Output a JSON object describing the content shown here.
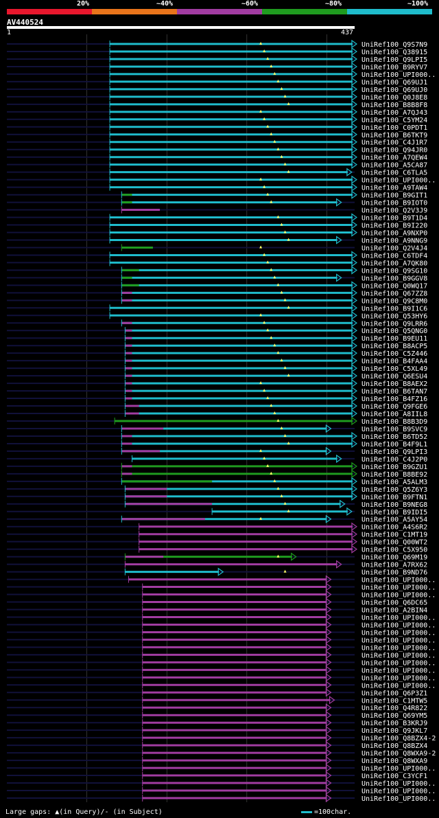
{
  "query": {
    "id": "AV440524",
    "start": "1",
    "end": "437"
  },
  "scale_labels": [
    "20%",
    "~40%",
    "~60%",
    "~80%",
    "~100%"
  ],
  "colors": {
    "red": "#e8172d",
    "orange": "#e8741b",
    "magenta": "#a13ca1",
    "green": "#1f9b1f",
    "cyan": "#1fbccc",
    "track": "#11113a",
    "grid": "#555555"
  },
  "legend": {
    "gaps_text": "Large gaps: ▲(in Query)/- (in Subject)",
    "scale_text": "=100char."
  },
  "hits": [
    {
      "label": "UniRef100_Q9S7N9",
      "color": "cyan",
      "start": 0.296,
      "end": 0.994,
      "arrow": "cyan"
    },
    {
      "label": "UniRef100_Q38915",
      "color": "cyan",
      "start": 0.296,
      "end": 0.994,
      "arrow": "cyan"
    },
    {
      "label": "UniRef100_Q9LPI5",
      "color": "cyan",
      "start": 0.296,
      "end": 0.994,
      "arrow": "cyan"
    },
    {
      "label": "UniRef100_B9RYV7",
      "color": "cyan",
      "start": 0.296,
      "end": 0.994,
      "arrow": "cyan"
    },
    {
      "label": "UniRef100_UPI000..",
      "color": "cyan",
      "start": 0.296,
      "end": 0.994,
      "arrow": "cyan"
    },
    {
      "label": "UniRef100_Q69UJ1",
      "color": "cyan",
      "start": 0.296,
      "end": 0.994,
      "arrow": "cyan"
    },
    {
      "label": "UniRef100_Q69UJ0",
      "color": "cyan",
      "start": 0.296,
      "end": 0.994,
      "arrow": "cyan"
    },
    {
      "label": "UniRef100_Q0J8E8",
      "color": "cyan",
      "start": 0.296,
      "end": 0.994,
      "arrow": "cyan"
    },
    {
      "label": "UniRef100_B8B8F8",
      "color": "cyan",
      "start": 0.296,
      "end": 0.994,
      "arrow": "cyan"
    },
    {
      "label": "UniRef100_A7QJ43",
      "color": "cyan",
      "start": 0.296,
      "end": 0.994,
      "arrow": "cyan"
    },
    {
      "label": "UniRef100_C5YM24",
      "color": "cyan",
      "start": 0.296,
      "end": 0.994,
      "arrow": "cyan"
    },
    {
      "label": "UniRef100_C0PDT1",
      "color": "cyan",
      "start": 0.296,
      "end": 0.994,
      "arrow": "cyan"
    },
    {
      "label": "UniRef100_B6TKT9",
      "color": "cyan",
      "start": 0.296,
      "end": 0.994,
      "arrow": "cyan"
    },
    {
      "label": "UniRef100_C4J1R7",
      "color": "cyan",
      "start": 0.296,
      "end": 0.994,
      "arrow": "cyan"
    },
    {
      "label": "UniRef100_Q94JR0",
      "color": "cyan",
      "start": 0.296,
      "end": 0.994,
      "arrow": "cyan"
    },
    {
      "label": "UniRef100_A7QEW4",
      "color": "cyan",
      "start": 0.296,
      "end": 0.994,
      "arrow": "cyan"
    },
    {
      "label": "UniRef100_A5CA87",
      "color": "cyan",
      "start": 0.296,
      "end": 0.994,
      "arrow": "cyan"
    },
    {
      "label": "UniRef100_C6TLA5",
      "color": "cyan",
      "start": 0.296,
      "end": 0.98,
      "arrow": "cyan"
    },
    {
      "label": "UniRef100_UPI000..",
      "color": "cyan",
      "start": 0.296,
      "end": 0.994,
      "arrow": "cyan"
    },
    {
      "label": "UniRef100_A9TAW4",
      "color": "cyan",
      "start": 0.296,
      "end": 0.994,
      "arrow": "cyan"
    },
    {
      "label": "UniRef100_B9GIT1",
      "color": "cyan",
      "start": 0.33,
      "end": 0.994,
      "arrow": "cyan",
      "seg": [
        0.33,
        0.36,
        "green"
      ]
    },
    {
      "label": "UniRef100_B9IOT0",
      "color": "cyan",
      "start": 0.33,
      "end": 0.95,
      "arrow": "cyan",
      "seg": [
        0.33,
        0.36,
        "green"
      ]
    },
    {
      "label": "UniRef100_Q2V3J9",
      "color": "magenta",
      "start": 0.33,
      "end": 0.44,
      "arrow": ""
    },
    {
      "label": "UniRef100_B9T1D4",
      "color": "cyan",
      "start": 0.296,
      "end": 0.994,
      "arrow": "cyan"
    },
    {
      "label": "UniRef100_B9I220",
      "color": "cyan",
      "start": 0.296,
      "end": 0.994,
      "arrow": "cyan"
    },
    {
      "label": "UniRef100_A9NXP0",
      "color": "cyan",
      "start": 0.296,
      "end": 0.994,
      "arrow": "cyan"
    },
    {
      "label": "UniRef100_A9NNG9",
      "color": "cyan",
      "start": 0.296,
      "end": 0.95,
      "arrow": "cyan"
    },
    {
      "label": "UniRef100_Q2V4J4",
      "color": "green",
      "start": 0.33,
      "end": 0.42,
      "arrow": ""
    },
    {
      "label": "UniRef100_C6TDF4",
      "color": "cyan",
      "start": 0.296,
      "end": 0.994,
      "arrow": "cyan"
    },
    {
      "label": "UniRef100_A7QK80",
      "color": "cyan",
      "start": 0.296,
      "end": 0.994,
      "arrow": "cyan"
    },
    {
      "label": "UniRef100_Q9SG10",
      "color": "cyan",
      "start": 0.33,
      "end": 0.994,
      "arrow": "cyan",
      "seg": [
        0.33,
        0.38,
        "green"
      ]
    },
    {
      "label": "UniRef100_B9GGV8",
      "color": "cyan",
      "start": 0.33,
      "end": 0.95,
      "arrow": "cyan",
      "seg": [
        0.33,
        0.36,
        "green"
      ]
    },
    {
      "label": "UniRef100_Q0WQ17",
      "color": "cyan",
      "start": 0.33,
      "end": 0.994,
      "arrow": "cyan",
      "seg": [
        0.33,
        0.38,
        "green"
      ]
    },
    {
      "label": "UniRef100_Q67ZZ8",
      "color": "cyan",
      "start": 0.33,
      "end": 0.994,
      "arrow": "cyan",
      "seg": [
        0.33,
        0.36,
        "magenta"
      ]
    },
    {
      "label": "UniRef100_Q9C8M0",
      "color": "cyan",
      "start": 0.33,
      "end": 0.994,
      "arrow": "cyan",
      "seg": [
        0.33,
        0.36,
        "magenta"
      ]
    },
    {
      "label": "UniRef100_B9I1C6",
      "color": "cyan",
      "start": 0.296,
      "end": 0.994,
      "arrow": "cyan"
    },
    {
      "label": "UniRef100_Q53HY6",
      "color": "cyan",
      "start": 0.296,
      "end": 0.994,
      "arrow": "cyan"
    },
    {
      "label": "UniRef100_Q9LRR6",
      "color": "cyan",
      "start": 0.33,
      "end": 0.994,
      "arrow": "cyan",
      "seg": [
        0.33,
        0.36,
        "magenta"
      ]
    },
    {
      "label": "UniRef100_Q5QNG0",
      "color": "cyan",
      "start": 0.34,
      "end": 0.994,
      "arrow": "cyan",
      "seg": [
        0.34,
        0.36,
        "magenta"
      ]
    },
    {
      "label": "UniRef100_B9EU11",
      "color": "cyan",
      "start": 0.34,
      "end": 0.994,
      "arrow": "cyan",
      "seg": [
        0.34,
        0.36,
        "magenta"
      ]
    },
    {
      "label": "UniRef100_B8ACP5",
      "color": "cyan",
      "start": 0.34,
      "end": 0.994,
      "arrow": "cyan",
      "seg": [
        0.34,
        0.36,
        "magenta"
      ]
    },
    {
      "label": "UniRef100_C5Z446",
      "color": "cyan",
      "start": 0.34,
      "end": 0.994,
      "arrow": "cyan",
      "seg": [
        0.34,
        0.36,
        "magenta"
      ]
    },
    {
      "label": "UniRef100_B4FAA4",
      "color": "cyan",
      "start": 0.34,
      "end": 0.994,
      "arrow": "cyan",
      "seg": [
        0.34,
        0.36,
        "magenta"
      ]
    },
    {
      "label": "UniRef100_C5XL49",
      "color": "cyan",
      "start": 0.34,
      "end": 0.994,
      "arrow": "cyan",
      "seg": [
        0.34,
        0.36,
        "magenta"
      ]
    },
    {
      "label": "UniRef100_Q6ESU4",
      "color": "cyan",
      "start": 0.34,
      "end": 0.994,
      "arrow": "cyan",
      "seg": [
        0.34,
        0.36,
        "magenta"
      ]
    },
    {
      "label": "UniRef100_B8AEX2",
      "color": "cyan",
      "start": 0.34,
      "end": 0.994,
      "arrow": "cyan",
      "seg": [
        0.34,
        0.36,
        "magenta"
      ]
    },
    {
      "label": "UniRef100_B6TAN7",
      "color": "cyan",
      "start": 0.34,
      "end": 0.994,
      "arrow": "cyan",
      "seg": [
        0.34,
        0.36,
        "magenta"
      ]
    },
    {
      "label": "UniRef100_B4FZ16",
      "color": "cyan",
      "start": 0.34,
      "end": 0.994,
      "arrow": "cyan",
      "seg": [
        0.34,
        0.36,
        "magenta"
      ]
    },
    {
      "label": "UniRef100_Q9FGE6",
      "color": "cyan",
      "start": 0.34,
      "end": 0.994,
      "arrow": "cyan",
      "seg": [
        0.34,
        0.38,
        "magenta"
      ]
    },
    {
      "label": "UniRef100_A8IIL8",
      "color": "cyan",
      "start": 0.34,
      "end": 0.994,
      "arrow": "cyan",
      "seg": [
        0.34,
        0.38,
        "magenta"
      ]
    },
    {
      "label": "UniRef100_B8B3D9",
      "color": "green",
      "start": 0.31,
      "end": 0.994,
      "arrow": "green"
    },
    {
      "label": "UniRef100_B9SVC9",
      "color": "cyan",
      "start": 0.33,
      "end": 0.92,
      "arrow": "cyan",
      "seg": [
        0.33,
        0.45,
        "magenta"
      ]
    },
    {
      "label": "UniRef100_B6TD52",
      "color": "cyan",
      "start": 0.33,
      "end": 0.994,
      "arrow": "cyan",
      "seg": [
        0.33,
        0.36,
        "magenta"
      ]
    },
    {
      "label": "UniRef100_B4F9L1",
      "color": "cyan",
      "start": 0.33,
      "end": 0.994,
      "arrow": "cyan",
      "seg": [
        0.33,
        0.36,
        "magenta"
      ]
    },
    {
      "label": "UniRef100_Q9LPI3",
      "color": "cyan",
      "start": 0.33,
      "end": 0.92,
      "arrow": "cyan",
      "seg": [
        0.33,
        0.44,
        "magenta"
      ]
    },
    {
      "label": "UniRef100_C4J2P0",
      "color": "cyan",
      "start": 0.36,
      "end": 0.95,
      "arrow": "cyan"
    },
    {
      "label": "UniRef100_B9GZU1",
      "color": "green",
      "start": 0.33,
      "end": 0.994,
      "arrow": "green",
      "seg": [
        0.33,
        0.36,
        "magenta"
      ]
    },
    {
      "label": "UniRef100_B8BE92",
      "color": "green",
      "start": 0.33,
      "end": 0.994,
      "arrow": "green",
      "seg": [
        0.33,
        0.36,
        "magenta"
      ]
    },
    {
      "label": "UniRef100_A5ALM3",
      "color": "cyan",
      "start": 0.33,
      "end": 0.994,
      "arrow": "cyan",
      "seg": [
        0.33,
        0.59,
        "green"
      ]
    },
    {
      "label": "UniRef100_Q5Z6Y3",
      "color": "cyan",
      "start": 0.34,
      "end": 0.994,
      "arrow": "cyan",
      "seg": [
        0.34,
        0.46,
        "magenta"
      ]
    },
    {
      "label": "UniRef100_B9FTN1",
      "color": "cyan",
      "start": 0.34,
      "end": 0.994,
      "arrow": "cyan",
      "seg": [
        0.34,
        0.46,
        "magenta"
      ]
    },
    {
      "label": "UniRef100_B9NEG8",
      "color": "cyan",
      "start": 0.34,
      "end": 0.96,
      "arrow": "cyan",
      "seg": [
        0.34,
        0.59,
        "magenta"
      ]
    },
    {
      "label": "UniRef100_B9IDI5",
      "color": "cyan",
      "start": 0.59,
      "end": 0.98,
      "arrow": "cyan"
    },
    {
      "label": "UniRef100_A5AY54",
      "color": "cyan",
      "start": 0.33,
      "end": 0.92,
      "arrow": "cyan",
      "seg": [
        0.33,
        0.57,
        "magenta"
      ]
    },
    {
      "label": "UniRef100_A4S6R2",
      "color": "magenta",
      "start": 0.38,
      "end": 0.994,
      "arrow": "magenta"
    },
    {
      "label": "UniRef100_C1MT19",
      "color": "magenta",
      "start": 0.38,
      "end": 0.994,
      "arrow": "magenta"
    },
    {
      "label": "UniRef100_Q00WT2",
      "color": "magenta",
      "start": 0.38,
      "end": 0.994,
      "arrow": "magenta"
    },
    {
      "label": "UniRef100_C5X950",
      "color": "magenta",
      "start": 0.38,
      "end": 0.994,
      "arrow": "magenta"
    },
    {
      "label": "UniRef100_Q69M19",
      "color": "green",
      "start": 0.34,
      "end": 0.82,
      "arrow": "green",
      "seg": [
        0.34,
        0.45,
        "magenta"
      ]
    },
    {
      "label": "UniRef100_A7RX62",
      "color": "magenta",
      "start": 0.34,
      "end": 0.95,
      "arrow": "magenta"
    },
    {
      "label": "UniRef100_B9ND76",
      "color": "cyan",
      "start": 0.34,
      "end": 0.61,
      "arrow": "cyan"
    },
    {
      "label": "UniRef100_UPI000..",
      "color": "magenta",
      "start": 0.35,
      "end": 0.92,
      "arrow": "magenta"
    },
    {
      "label": "UniRef100_UPI000..",
      "color": "magenta",
      "start": 0.39,
      "end": 0.92,
      "arrow": "magenta"
    },
    {
      "label": "UniRef100_UPI000..",
      "color": "magenta",
      "start": 0.39,
      "end": 0.92,
      "arrow": "magenta"
    },
    {
      "label": "UniRef100_Q6DC65",
      "color": "magenta",
      "start": 0.39,
      "end": 0.92,
      "arrow": "magenta"
    },
    {
      "label": "UniRef100_A2BIN4",
      "color": "magenta",
      "start": 0.39,
      "end": 0.92,
      "arrow": "magenta"
    },
    {
      "label": "UniRef100_UPI000..",
      "color": "magenta",
      "start": 0.39,
      "end": 0.92,
      "arrow": "magenta"
    },
    {
      "label": "UniRef100_UPI000..",
      "color": "magenta",
      "start": 0.39,
      "end": 0.92,
      "arrow": "magenta"
    },
    {
      "label": "UniRef100_UPI000..",
      "color": "magenta",
      "start": 0.39,
      "end": 0.92,
      "arrow": "magenta"
    },
    {
      "label": "UniRef100_UPI000..",
      "color": "magenta",
      "start": 0.39,
      "end": 0.92,
      "arrow": "magenta"
    },
    {
      "label": "UniRef100_UPI000..",
      "color": "magenta",
      "start": 0.39,
      "end": 0.92,
      "arrow": "magenta"
    },
    {
      "label": "UniRef100_UPI000..",
      "color": "magenta",
      "start": 0.39,
      "end": 0.92,
      "arrow": "magenta"
    },
    {
      "label": "UniRef100_UPI000..",
      "color": "magenta",
      "start": 0.39,
      "end": 0.92,
      "arrow": "magenta"
    },
    {
      "label": "UniRef100_UPI000..",
      "color": "magenta",
      "start": 0.39,
      "end": 0.92,
      "arrow": "magenta"
    },
    {
      "label": "UniRef100_UPI000..",
      "color": "magenta",
      "start": 0.39,
      "end": 0.92,
      "arrow": "magenta"
    },
    {
      "label": "UniRef100_UPI000..",
      "color": "magenta",
      "start": 0.39,
      "end": 0.92,
      "arrow": "magenta"
    },
    {
      "label": "UniRef100_Q6P3Z1",
      "color": "magenta",
      "start": 0.39,
      "end": 0.92,
      "arrow": "magenta"
    },
    {
      "label": "UniRef100_C1MTW5",
      "color": "magenta",
      "start": 0.39,
      "end": 0.93,
      "arrow": "magenta"
    },
    {
      "label": "UniRef100_Q4R822",
      "color": "magenta",
      "start": 0.39,
      "end": 0.92,
      "arrow": "magenta"
    },
    {
      "label": "UniRef100_Q69YM5",
      "color": "magenta",
      "start": 0.39,
      "end": 0.92,
      "arrow": "magenta"
    },
    {
      "label": "UniRef100_B3KRJ9",
      "color": "magenta",
      "start": 0.39,
      "end": 0.92,
      "arrow": "magenta"
    },
    {
      "label": "UniRef100_Q9JKL7",
      "color": "magenta",
      "start": 0.39,
      "end": 0.92,
      "arrow": "magenta"
    },
    {
      "label": "UniRef100_Q8BZX4-2",
      "color": "magenta",
      "start": 0.39,
      "end": 0.92,
      "arrow": "magenta"
    },
    {
      "label": "UniRef100_Q8BZX4",
      "color": "magenta",
      "start": 0.39,
      "end": 0.92,
      "arrow": "magenta"
    },
    {
      "label": "UniRef100_Q8WXA9-2",
      "color": "magenta",
      "start": 0.39,
      "end": 0.92,
      "arrow": "magenta"
    },
    {
      "label": "UniRef100_Q8WXA9",
      "color": "magenta",
      "start": 0.39,
      "end": 0.92,
      "arrow": "magenta"
    },
    {
      "label": "UniRef100_UPI000..",
      "color": "magenta",
      "start": 0.39,
      "end": 0.92,
      "arrow": "magenta"
    },
    {
      "label": "UniRef100_C3YCF1",
      "color": "magenta",
      "start": 0.39,
      "end": 0.92,
      "arrow": "magenta"
    },
    {
      "label": "UniRef100_UPI000..",
      "color": "magenta",
      "start": 0.39,
      "end": 0.92,
      "arrow": "magenta"
    },
    {
      "label": "UniRef100_UPI000..",
      "color": "magenta",
      "start": 0.39,
      "end": 0.92,
      "arrow": "magenta"
    },
    {
      "label": "UniRef100_UPI000..",
      "color": "magenta",
      "start": 0.39,
      "end": 0.92,
      "arrow": "magenta"
    }
  ]
}
